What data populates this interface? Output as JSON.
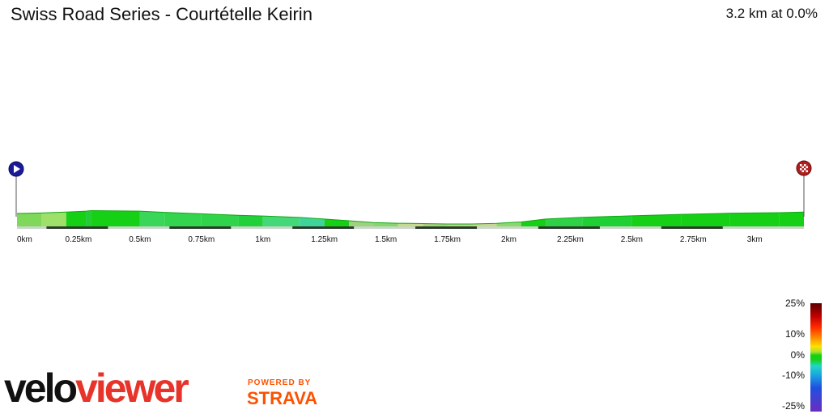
{
  "header": {
    "title": "Swiss Road Series - Courtételle Keirin",
    "summary": "3.2 km at 0.0%"
  },
  "chart_data": {
    "type": "area",
    "title": "Swiss Road Series - Courtételle Keirin",
    "xlabel": "",
    "ylabel": "",
    "x_unit": "km",
    "xlim": [
      0,
      3.2
    ],
    "tick_labels": [
      "0km",
      "0.25km",
      "0.5km",
      "0.75km",
      "1km",
      "1.25km",
      "1.5km",
      "1.75km",
      "2km",
      "2.25km",
      "2.5km",
      "2.75km",
      "3km"
    ],
    "tick_values": [
      0,
      0.25,
      0.5,
      0.75,
      1.0,
      1.25,
      1.5,
      1.75,
      2.0,
      2.25,
      2.5,
      2.75,
      3.0
    ],
    "elevation_relative": {
      "x": [
        0,
        0.1,
        0.2,
        0.28,
        0.3,
        0.5,
        0.6,
        0.75,
        0.9,
        1.0,
        1.15,
        1.25,
        1.35,
        1.45,
        1.55,
        1.65,
        1.75,
        1.85,
        1.95,
        2.05,
        2.15,
        2.3,
        2.5,
        2.7,
        2.9,
        3.1,
        3.2
      ],
      "y": [
        0.72,
        0.76,
        0.82,
        0.88,
        0.92,
        0.88,
        0.8,
        0.7,
        0.6,
        0.55,
        0.45,
        0.34,
        0.22,
        0.1,
        0.05,
        0.03,
        0.0,
        0.0,
        0.04,
        0.14,
        0.34,
        0.46,
        0.56,
        0.66,
        0.74,
        0.78,
        0.82
      ]
    },
    "segment_colors": [
      "#7fd85a",
      "#9fe06a",
      "#16d016",
      "#22cc33",
      "#16d016",
      "#3ad65a",
      "#33d44e",
      "#2fd44a",
      "#22d03c",
      "#45d878",
      "#3fd49c",
      "#16d016",
      "#9ed27f",
      "#86d66d",
      "#c6d98c",
      "#a8d17e",
      "#b5d68a",
      "#c8d68f",
      "#8ed86b",
      "#16d016",
      "#2ed246",
      "#1fd034",
      "#16d016",
      "#16d016",
      "#16d016",
      "#16d016"
    ],
    "markers": {
      "start_icon": "play-icon",
      "finish_icon": "checkered-flag-icon"
    },
    "gradient_scale": {
      "labels": [
        "25%",
        "10%",
        "0%",
        "-10%",
        "-25%"
      ],
      "values": [
        25,
        10,
        0,
        -10,
        -25
      ]
    }
  },
  "branding": {
    "logo_velo": "velo",
    "logo_viewer": "viewer",
    "powered_by": "POWERED BY",
    "strava": "STRAVA",
    "colors": {
      "velo": "#111111",
      "viewer": "#e8332a",
      "strava": "#fc5200"
    }
  }
}
